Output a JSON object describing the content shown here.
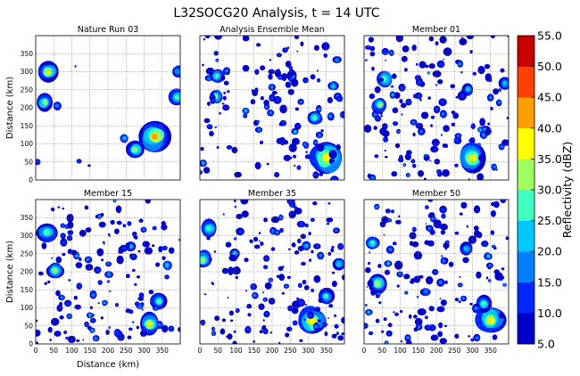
{
  "chart_data": {
    "type": "heatmap",
    "title": "L32SOCG20 Analysis, t = 14 UTC",
    "xlabel": "Distance (km)",
    "ylabel": "Distance (km)",
    "xlim": [
      0,
      400
    ],
    "ylim": [
      0,
      400
    ],
    "x_ticks": [
      "0",
      "50",
      "100",
      "150",
      "200",
      "250",
      "300",
      "350"
    ],
    "y_ticks": [
      "0",
      "50",
      "100",
      "150",
      "200",
      "250",
      "300",
      "350"
    ],
    "grid": true,
    "colorbar": {
      "label": "Reflectivity (dBZ)",
      "ticks": [
        "5.0",
        "10.0",
        "15.0",
        "20.0",
        "25.0",
        "30.0",
        "35.0",
        "40.0",
        "45.0",
        "50.0",
        "55.0"
      ],
      "levels": [
        5,
        10,
        15,
        20,
        25,
        30,
        35,
        40,
        45,
        50,
        55
      ],
      "colors": [
        "#0000c8",
        "#0028ff",
        "#0080ff",
        "#00c8ff",
        "#40ffc0",
        "#a0ff60",
        "#ffff00",
        "#ffa000",
        "#ff4000",
        "#c80000"
      ]
    },
    "panels": [
      {
        "title": "Nature Run 03",
        "pattern": "nature"
      },
      {
        "title": "Analysis Ensemble Mean",
        "pattern": "mean"
      },
      {
        "title": "Member 01",
        "pattern": "member"
      },
      {
        "title": "Member 15",
        "pattern": "member"
      },
      {
        "title": "Member 35",
        "pattern": "member"
      },
      {
        "title": "Member 50",
        "pattern": "member"
      }
    ]
  }
}
